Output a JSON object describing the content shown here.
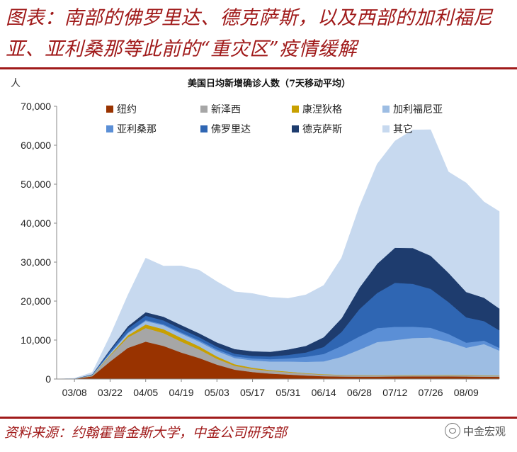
{
  "figure": {
    "title": "图表：南部的佛罗里达、德克萨斯，以及西部的加利福尼亚、亚利桑那等此前的“重灾区”疫情缓解",
    "source": "资料来源：约翰霍普金斯大学，中金公司研究部",
    "watermark": "中金宏观"
  },
  "chart_data": {
    "type": "area",
    "stacked": true,
    "title": "美国日均新增确诊人数（7天移动平均）",
    "ylabel": "人",
    "ylim": [
      0,
      70000
    ],
    "yticks": [
      "0",
      "10,000",
      "20,000",
      "30,000",
      "40,000",
      "50,000",
      "60,000",
      "70,000"
    ],
    "ytick_values": [
      0,
      10000,
      20000,
      30000,
      40000,
      50000,
      60000,
      70000
    ],
    "xticks": [
      "03/08",
      "03/22",
      "04/05",
      "04/19",
      "05/03",
      "05/17",
      "05/31",
      "06/14",
      "06/28",
      "07/12",
      "07/26",
      "08/09"
    ],
    "x": [
      "03/01",
      "03/08",
      "03/15",
      "03/22",
      "03/29",
      "04/05",
      "04/12",
      "04/19",
      "04/26",
      "05/03",
      "05/10",
      "05/17",
      "05/24",
      "05/31",
      "06/07",
      "06/14",
      "06/21",
      "06/28",
      "07/05",
      "07/12",
      "07/19",
      "07/26",
      "08/02",
      "08/09",
      "08/16",
      "08/22"
    ],
    "legend_placement": "top",
    "series": [
      {
        "name": "纽约",
        "color": "#993300",
        "values": [
          0,
          50,
          700,
          4500,
          8000,
          9600,
          8500,
          6800,
          5400,
          3700,
          2400,
          1800,
          1400,
          1150,
          900,
          720,
          640,
          620,
          620,
          660,
          680,
          680,
          680,
          640,
          600,
          580
        ]
      },
      {
        "name": "新泽西",
        "color": "#a6a6a6",
        "values": [
          0,
          10,
          200,
          1500,
          2700,
          3500,
          3300,
          2800,
          2200,
          1500,
          1000,
          800,
          700,
          600,
          500,
          420,
          380,
          330,
          280,
          250,
          250,
          270,
          300,
          300,
          280,
          250
        ]
      },
      {
        "name": "康涅狄格",
        "color": "#c8a000",
        "values": [
          0,
          5,
          40,
          200,
          500,
          900,
          1000,
          950,
          800,
          600,
          400,
          300,
          200,
          150,
          120,
          100,
          80,
          80,
          90,
          90,
          100,
          100,
          100,
          100,
          90,
          80
        ]
      },
      {
        "name": "加利福尼亚",
        "color": "#9dbde3",
        "values": [
          0,
          20,
          100,
          400,
          600,
          900,
          1000,
          1100,
          1200,
          1400,
          1600,
          1900,
          2200,
          2600,
          2900,
          3300,
          4600,
          6500,
          8500,
          9000,
          9500,
          9600,
          8500,
          7000,
          8000,
          6400
        ]
      },
      {
        "name": "亚利桑那",
        "color": "#5b8fd6",
        "values": [
          0,
          2,
          20,
          80,
          150,
          250,
          250,
          300,
          350,
          400,
          450,
          500,
          600,
          800,
          1300,
          1900,
          2800,
          3400,
          3600,
          3400,
          2900,
          2500,
          2000,
          1300,
          900,
          700
        ]
      },
      {
        "name": "佛罗里达",
        "color": "#2f66b3",
        "values": [
          0,
          10,
          100,
          600,
          1000,
          1100,
          1000,
          900,
          800,
          700,
          650,
          650,
          700,
          900,
          1100,
          1800,
          3600,
          7000,
          9000,
          11300,
          11000,
          10000,
          8200,
          6500,
          5000,
          4500
        ]
      },
      {
        "name": "德克萨斯",
        "color": "#1e3c6e",
        "values": [
          0,
          5,
          60,
          300,
          600,
          900,
          950,
          1000,
          1000,
          1100,
          1200,
          1200,
          1200,
          1400,
          1700,
          2500,
          3500,
          5500,
          7500,
          9000,
          9200,
          8500,
          7500,
          6500,
          6000,
          5600
        ]
      },
      {
        "name": "其它",
        "color": "#c7d9ef",
        "values": [
          0,
          100,
          500,
          3500,
          8000,
          13900,
          13000,
          15200,
          16200,
          15600,
          14700,
          14800,
          14000,
          13100,
          13100,
          13300,
          15500,
          20800,
          25600,
          27400,
          30300,
          32350,
          25900,
          28000,
          24600,
          24900
        ]
      }
    ]
  }
}
